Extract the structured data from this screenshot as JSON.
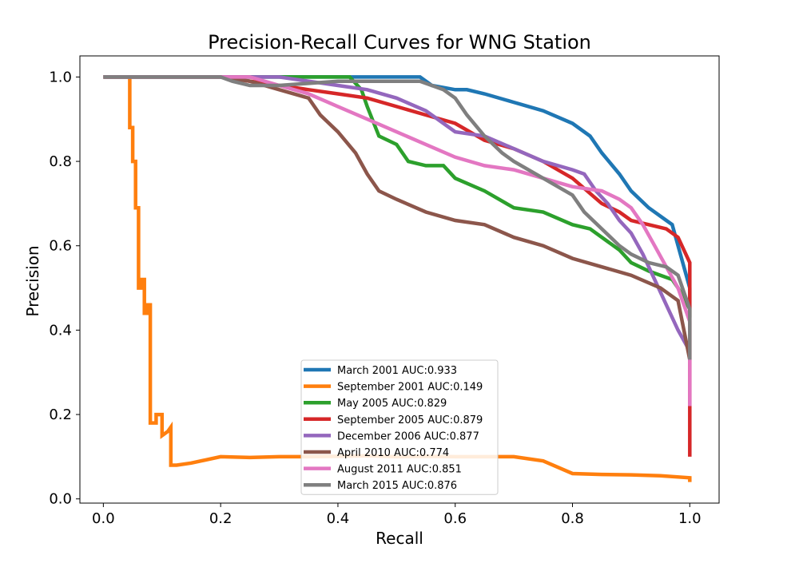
{
  "chart_data": {
    "type": "line",
    "title": "Precision-Recall Curves for WNG Station",
    "xlabel": "Recall",
    "ylabel": "Precision",
    "xlim": [
      -0.04,
      1.05
    ],
    "ylim": [
      -0.01,
      1.05
    ],
    "xticks": [
      "0.0",
      "0.2",
      "0.4",
      "0.6",
      "0.8",
      "1.0"
    ],
    "yticks": [
      "0.0",
      "0.2",
      "0.4",
      "0.6",
      "0.8",
      "1.0"
    ],
    "grid": false,
    "legend_position": "lower center",
    "series": [
      {
        "name": "March 2001 AUC:0.933",
        "color": "#1f77b4",
        "x": [
          0.0,
          0.2,
          0.3,
          0.4,
          0.5,
          0.54,
          0.56,
          0.6,
          0.62,
          0.65,
          0.7,
          0.75,
          0.8,
          0.83,
          0.85,
          0.88,
          0.9,
          0.93,
          0.96,
          0.97,
          0.98,
          1.0,
          1.0
        ],
        "y": [
          1.0,
          1.0,
          1.0,
          1.0,
          1.0,
          1.0,
          0.98,
          0.97,
          0.97,
          0.96,
          0.94,
          0.92,
          0.89,
          0.86,
          0.82,
          0.77,
          0.73,
          0.69,
          0.66,
          0.65,
          0.6,
          0.5,
          0.45
        ]
      },
      {
        "name": "September 2001 AUC:0.149",
        "color": "#ff7f0e",
        "x": [
          0.0,
          0.045,
          0.045,
          0.05,
          0.05,
          0.055,
          0.055,
          0.06,
          0.06,
          0.065,
          0.065,
          0.07,
          0.07,
          0.075,
          0.075,
          0.08,
          0.08,
          0.09,
          0.09,
          0.1,
          0.1,
          0.11,
          0.115,
          0.115,
          0.125,
          0.15,
          0.2,
          0.25,
          0.3,
          0.35,
          0.4,
          0.45,
          0.5,
          0.55,
          0.6,
          0.65,
          0.7,
          0.75,
          0.8,
          0.85,
          0.9,
          0.95,
          1.0,
          1.0
        ],
        "y": [
          1.0,
          1.0,
          0.88,
          0.88,
          0.8,
          0.8,
          0.69,
          0.69,
          0.5,
          0.5,
          0.52,
          0.52,
          0.44,
          0.44,
          0.46,
          0.46,
          0.18,
          0.18,
          0.2,
          0.2,
          0.15,
          0.16,
          0.17,
          0.08,
          0.08,
          0.085,
          0.1,
          0.098,
          0.1,
          0.1,
          0.101,
          0.102,
          0.1,
          0.101,
          0.1,
          0.1,
          0.1,
          0.09,
          0.06,
          0.058,
          0.057,
          0.055,
          0.05,
          0.04
        ]
      },
      {
        "name": "May 2005 AUC:0.829",
        "color": "#2ca02c",
        "x": [
          0.0,
          0.2,
          0.3,
          0.4,
          0.42,
          0.44,
          0.45,
          0.47,
          0.5,
          0.52,
          0.55,
          0.58,
          0.6,
          0.65,
          0.7,
          0.75,
          0.8,
          0.83,
          0.86,
          0.88,
          0.9,
          0.93,
          0.95,
          0.97,
          0.98,
          1.0,
          1.0
        ],
        "y": [
          1.0,
          1.0,
          1.0,
          1.0,
          1.0,
          0.97,
          0.93,
          0.86,
          0.84,
          0.8,
          0.79,
          0.79,
          0.76,
          0.73,
          0.69,
          0.68,
          0.65,
          0.64,
          0.61,
          0.59,
          0.56,
          0.54,
          0.53,
          0.52,
          0.5,
          0.45,
          0.43
        ]
      },
      {
        "name": "September 2005 AUC:0.879",
        "color": "#d62728",
        "x": [
          0.0,
          0.2,
          0.3,
          0.35,
          0.4,
          0.45,
          0.5,
          0.55,
          0.6,
          0.65,
          0.7,
          0.75,
          0.8,
          0.85,
          0.88,
          0.9,
          0.93,
          0.96,
          0.98,
          1.0,
          1.0,
          1.0
        ],
        "y": [
          1.0,
          1.0,
          0.98,
          0.97,
          0.96,
          0.95,
          0.93,
          0.91,
          0.89,
          0.85,
          0.83,
          0.8,
          0.76,
          0.7,
          0.68,
          0.66,
          0.65,
          0.64,
          0.62,
          0.56,
          0.2,
          0.1
        ]
      },
      {
        "name": "December 2006 AUC:0.877",
        "color": "#9467bd",
        "x": [
          0.0,
          0.2,
          0.3,
          0.35,
          0.4,
          0.45,
          0.5,
          0.55,
          0.58,
          0.6,
          0.65,
          0.7,
          0.75,
          0.8,
          0.82,
          0.84,
          0.86,
          0.88,
          0.9,
          0.92,
          0.94,
          0.96,
          0.98,
          1.0
        ],
        "y": [
          1.0,
          1.0,
          1.0,
          0.99,
          0.98,
          0.97,
          0.95,
          0.92,
          0.89,
          0.87,
          0.86,
          0.83,
          0.8,
          0.78,
          0.77,
          0.73,
          0.7,
          0.66,
          0.63,
          0.58,
          0.52,
          0.46,
          0.4,
          0.35
        ]
      },
      {
        "name": "April 2010 AUC:0.774",
        "color": "#8c564b",
        "x": [
          0.0,
          0.2,
          0.25,
          0.3,
          0.35,
          0.37,
          0.4,
          0.43,
          0.45,
          0.47,
          0.5,
          0.55,
          0.6,
          0.65,
          0.7,
          0.75,
          0.8,
          0.85,
          0.9,
          0.95,
          0.98,
          1.0
        ],
        "y": [
          1.0,
          1.0,
          0.99,
          0.97,
          0.95,
          0.91,
          0.87,
          0.82,
          0.77,
          0.73,
          0.71,
          0.68,
          0.66,
          0.65,
          0.62,
          0.6,
          0.57,
          0.55,
          0.53,
          0.5,
          0.47,
          0.33
        ]
      },
      {
        "name": "August 2011 AUC:0.851",
        "color": "#e377c2",
        "x": [
          0.0,
          0.2,
          0.25,
          0.3,
          0.35,
          0.4,
          0.45,
          0.5,
          0.55,
          0.6,
          0.65,
          0.7,
          0.75,
          0.8,
          0.85,
          0.88,
          0.9,
          0.92,
          0.94,
          0.96,
          0.98,
          1.0,
          1.0
        ],
        "y": [
          1.0,
          1.0,
          1.0,
          0.98,
          0.96,
          0.93,
          0.9,
          0.87,
          0.84,
          0.81,
          0.79,
          0.78,
          0.76,
          0.74,
          0.73,
          0.71,
          0.69,
          0.65,
          0.6,
          0.55,
          0.5,
          0.42,
          0.22
        ]
      },
      {
        "name": "March 2015 AUC:0.876",
        "color": "#7f7f7f",
        "x": [
          0.0,
          0.2,
          0.22,
          0.25,
          0.3,
          0.4,
          0.5,
          0.54,
          0.56,
          0.58,
          0.6,
          0.62,
          0.65,
          0.68,
          0.7,
          0.75,
          0.8,
          0.82,
          0.85,
          0.88,
          0.9,
          0.93,
          0.96,
          0.98,
          1.0,
          1.0
        ],
        "y": [
          1.0,
          1.0,
          0.99,
          0.98,
          0.98,
          0.99,
          0.99,
          0.99,
          0.98,
          0.97,
          0.95,
          0.91,
          0.86,
          0.82,
          0.8,
          0.76,
          0.72,
          0.68,
          0.64,
          0.6,
          0.58,
          0.56,
          0.55,
          0.53,
          0.45,
          0.33
        ]
      }
    ]
  }
}
